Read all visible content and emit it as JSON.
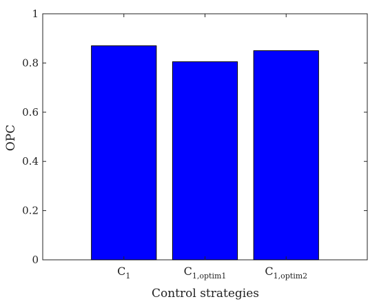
{
  "chart_data": {
    "type": "bar",
    "categories": [
      {
        "main": "C",
        "sub": "1"
      },
      {
        "main": "C",
        "sub": "1,optim1"
      },
      {
        "main": "C",
        "sub": "1,optim2"
      }
    ],
    "values": [
      0.87,
      0.805,
      0.85
    ],
    "title": "",
    "xlabel": "Control strategies",
    "ylabel": "OPC",
    "ylim": [
      0,
      1
    ],
    "yticks": [
      0,
      0.2,
      0.4,
      0.6,
      0.8,
      1
    ],
    "ytick_labels": [
      "0",
      "0.2",
      "0.4",
      "0.6",
      "0.8",
      "1"
    ],
    "grid": false,
    "bar_color": "#0000ff",
    "bar_edge_color": "#000000"
  }
}
